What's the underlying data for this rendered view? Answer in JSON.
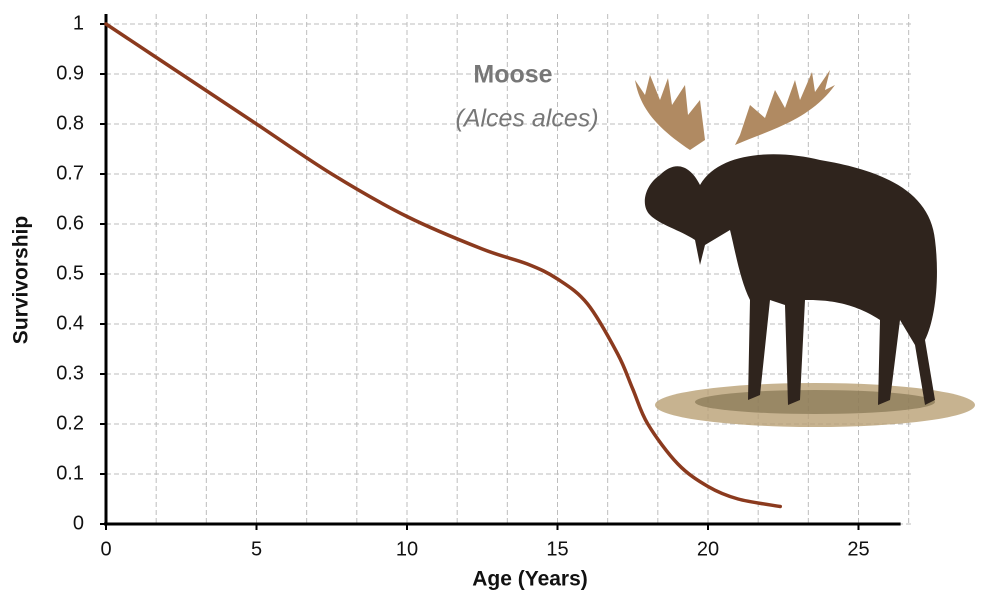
{
  "chart_data": {
    "type": "line",
    "xlabel": "Age (Years)",
    "ylabel": "Survivorship",
    "annotations": [
      "Moose",
      "(Alces alces)"
    ],
    "xlim": [
      0,
      26.4
    ],
    "ylim": [
      0,
      1
    ],
    "xticks": [
      0,
      5,
      10,
      15,
      20,
      25
    ],
    "xgrid": [
      1.667,
      3.333,
      6.667,
      8.333,
      11.667,
      13.333,
      16.667,
      18.333,
      21.667,
      23.333,
      26.667
    ],
    "yticks": [
      0,
      0.1,
      0.2,
      0.3,
      0.4,
      0.5,
      0.6,
      0.7,
      0.8,
      0.9,
      1
    ],
    "grid": true,
    "series": [
      {
        "color": "#8b3a1e",
        "x": [
          0,
          2.5,
          5,
          7.5,
          10,
          12.5,
          14,
          15,
          16,
          17,
          17.5,
          18,
          19,
          20,
          21,
          22.4
        ],
        "values": [
          1,
          0.9,
          0.8,
          0.7,
          0.615,
          0.55,
          0.52,
          0.49,
          0.44,
          0.34,
          0.27,
          0.2,
          0.12,
          0.075,
          0.05,
          0.035
        ]
      }
    ]
  }
}
